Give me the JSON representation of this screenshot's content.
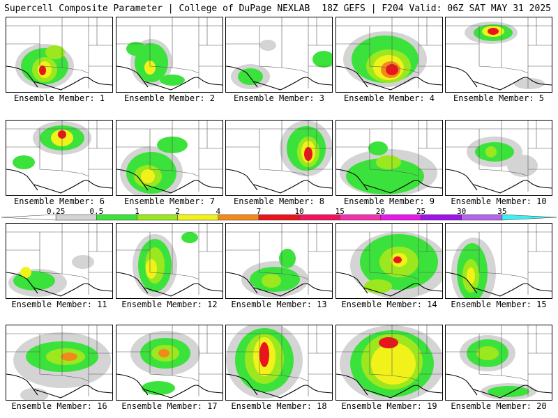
{
  "header": {
    "title_left": "Supercell Composite Parameter | College of DuPage NEXLAB",
    "title_right": "18Z GEFS | F204 Valid: 06Z SAT MAY 31 2025"
  },
  "colorbar": {
    "labels": [
      "0.25",
      "0.5",
      "1",
      "2",
      "4",
      "7",
      "10",
      "15",
      "20",
      "25",
      "30",
      "35"
    ],
    "colors": [
      "#ffffff",
      "#d4d4d4",
      "#3ce23c",
      "#9be81f",
      "#f2f21b",
      "#f28a1b",
      "#e8161c",
      "#f2135f",
      "#f032ac",
      "#e61ae6",
      "#9f14e8",
      "#b566e8",
      "#3ef0f0"
    ]
  },
  "panels": [
    {
      "label": "Ensemble Member: 1"
    },
    {
      "label": "Ensemble Member: 2"
    },
    {
      "label": "Ensemble Member: 3"
    },
    {
      "label": "Ensemble Member: 4"
    },
    {
      "label": "Ensemble Member: 5"
    },
    {
      "label": "Ensemble Member: 6"
    },
    {
      "label": "Ensemble Member: 7"
    },
    {
      "label": "Ensemble Member: 8"
    },
    {
      "label": "Ensemble Member: 9"
    },
    {
      "label": "Ensemble Member: 10"
    },
    {
      "label": "Ensemble Member: 11"
    },
    {
      "label": "Ensemble Member: 12"
    },
    {
      "label": "Ensemble Member: 13"
    },
    {
      "label": "Ensemble Member: 14"
    },
    {
      "label": "Ensemble Member: 15"
    },
    {
      "label": "Ensemble Member: 16"
    },
    {
      "label": "Ensemble Member: 17"
    },
    {
      "label": "Ensemble Member: 18"
    },
    {
      "label": "Ensemble Member: 19"
    },
    {
      "label": "Ensemble Member: 20"
    }
  ]
}
